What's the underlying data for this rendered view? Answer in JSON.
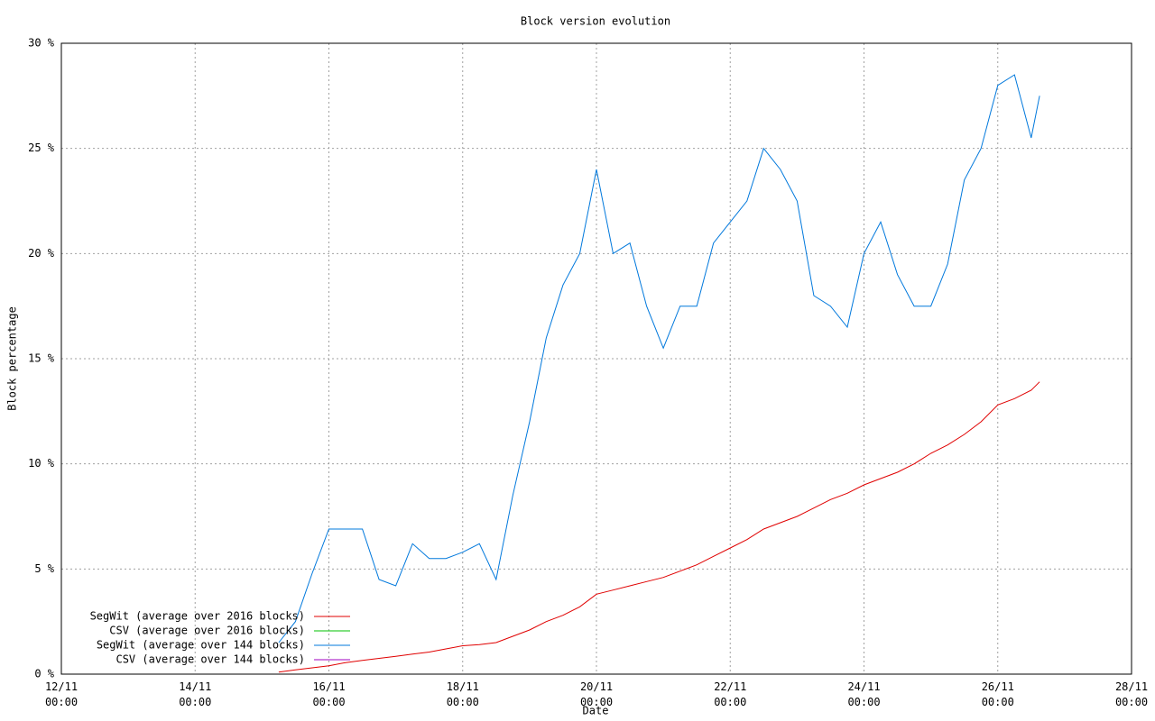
{
  "chart_data": {
    "type": "line",
    "title": "Block version evolution",
    "x_label": "Date",
    "y_label": "Block percentage",
    "xlim": [
      "12/11 00:00",
      "28/11 00:00"
    ],
    "xticks": [
      "12/11 00:00",
      "14/11 00:00",
      "16/11 00:00",
      "18/11 00:00",
      "20/11 00:00",
      "22/11 00:00",
      "24/11 00:00",
      "26/11 00:00",
      "28/11 00:00"
    ],
    "ylim": [
      0,
      30
    ],
    "yticks": [
      {
        "value": 0,
        "label": "0 %"
      },
      {
        "value": 5,
        "label": "5 %"
      },
      {
        "value": 10,
        "label": "10 %"
      },
      {
        "value": 15,
        "label": "15 %"
      },
      {
        "value": 20,
        "label": "20 %"
      },
      {
        "value": 25,
        "label": "25 %"
      },
      {
        "value": 30,
        "label": "30 %"
      }
    ],
    "grid": true,
    "legend": "bottom-left",
    "x": [
      "15/11 06:00",
      "15/11 12:00",
      "15/11 18:00",
      "16/11 00:00",
      "16/11 06:00",
      "16/11 12:00",
      "16/11 18:00",
      "17/11 00:00",
      "17/11 06:00",
      "17/11 12:00",
      "17/11 18:00",
      "18/11 00:00",
      "18/11 06:00",
      "18/11 12:00",
      "18/11 18:00",
      "19/11 00:00",
      "19/11 06:00",
      "19/11 12:00",
      "19/11 18:00",
      "20/11 00:00",
      "20/11 06:00",
      "20/11 12:00",
      "20/11 18:00",
      "21/11 00:00",
      "21/11 06:00",
      "21/11 12:00",
      "21/11 18:00",
      "22/11 00:00",
      "22/11 06:00",
      "22/11 12:00",
      "22/11 18:00",
      "23/11 00:00",
      "23/11 06:00",
      "23/11 12:00",
      "23/11 18:00",
      "24/11 00:00",
      "24/11 06:00",
      "24/11 12:00",
      "24/11 18:00",
      "25/11 00:00",
      "25/11 06:00",
      "25/11 12:00",
      "25/11 18:00",
      "26/11 00:00",
      "26/11 06:00",
      "26/11 12:00",
      "26/11 15:00"
    ],
    "series": [
      {
        "name": "SegWit (average over 2016 blocks)",
        "color": "#e00000",
        "values": [
          0.1,
          0.2,
          0.3,
          0.4,
          0.55,
          0.65,
          0.75,
          0.85,
          0.95,
          1.05,
          1.2,
          1.35,
          1.4,
          1.5,
          1.8,
          2.1,
          2.5,
          2.8,
          3.2,
          3.8,
          4.0,
          4.2,
          4.4,
          4.6,
          4.9,
          5.2,
          5.6,
          6.0,
          6.4,
          6.9,
          7.2,
          7.5,
          7.9,
          8.3,
          8.6,
          9.0,
          9.3,
          9.6,
          10.0,
          10.5,
          10.9,
          11.4,
          12.0,
          12.8,
          13.1,
          13.5,
          13.9
        ]
      },
      {
        "name": "CSV (average over 2016 blocks)",
        "color": "#00c000",
        "values": [
          null,
          null,
          null,
          null,
          null,
          null,
          null,
          null,
          null,
          null,
          null,
          null,
          null,
          null,
          null,
          null,
          null,
          null,
          null,
          null,
          null,
          null,
          null,
          null,
          null,
          null,
          null,
          null,
          null,
          null,
          null,
          null,
          null,
          null,
          null,
          null,
          null,
          null,
          null,
          null,
          null,
          null,
          null,
          null,
          null,
          null,
          null
        ]
      },
      {
        "name": "SegWit (average over 144 blocks)",
        "color": "#0078dc",
        "values": [
          1.5,
          2.5,
          4.8,
          6.9,
          6.9,
          6.9,
          4.5,
          4.2,
          6.2,
          5.5,
          5.5,
          5.8,
          6.2,
          4.5,
          8.5,
          12,
          16,
          18.5,
          20,
          24,
          20,
          20.5,
          17.5,
          15.5,
          17.5,
          17.5,
          20.5,
          21.5,
          22.5,
          25,
          24,
          22.5,
          18,
          17.5,
          16.5,
          20,
          21.5,
          19,
          17.5,
          17.5,
          19.5,
          23.5,
          25,
          28,
          28.5,
          25.5,
          27.5
        ]
      },
      {
        "name": "CSV (average over 144 blocks)",
        "color": "#a000c0",
        "values": [
          null,
          null,
          null,
          null,
          null,
          null,
          null,
          null,
          null,
          null,
          null,
          null,
          null,
          null,
          null,
          null,
          null,
          null,
          null,
          null,
          null,
          null,
          null,
          null,
          null,
          null,
          null,
          null,
          null,
          null,
          null,
          null,
          null,
          null,
          null,
          null,
          null,
          null,
          null,
          null,
          null,
          null,
          null,
          null,
          null,
          null,
          null
        ]
      }
    ]
  }
}
